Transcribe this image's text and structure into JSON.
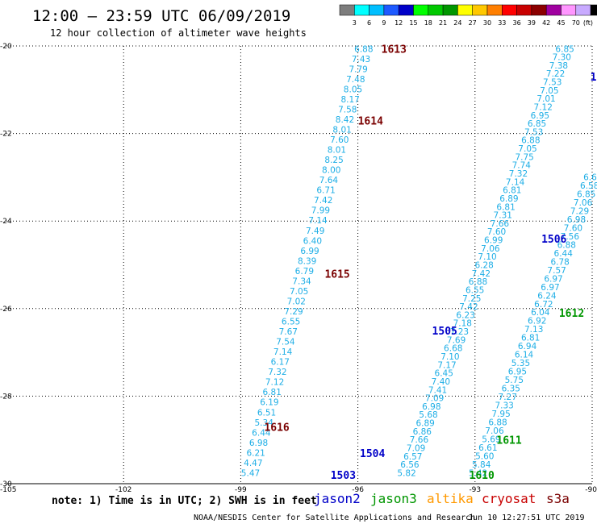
{
  "header": {
    "title": "12:00 – 23:59 UTC 06/09/2019",
    "subtitle": "12 hour collection of altimeter wave heights"
  },
  "color_legend": {
    "labels": [
      "3",
      "6",
      "9",
      "12",
      "15",
      "18",
      "21",
      "24",
      "27",
      "30",
      "33",
      "36",
      "39",
      "42",
      "45",
      "70",
      "(ft)"
    ],
    "colors": [
      "#7d7d7d",
      "#00ffff",
      "#00bfff",
      "#1e5aff",
      "#0000c8",
      "#00ff00",
      "#00c800",
      "#009600",
      "#ffff00",
      "#ffc800",
      "#ff7f00",
      "#ff0000",
      "#c80000",
      "#8b0000",
      "#a000a0",
      "#ff96ff",
      "#c8aaff",
      "#000000"
    ]
  },
  "footer": {
    "note": "note: 1) Time is in UTC; 2) SWH is in feet",
    "satellites": [
      {
        "name": "jason2",
        "color": "#0000c8"
      },
      {
        "name": "jason3",
        "color": "#009600"
      },
      {
        "name": "altika",
        "color": "#ff9900"
      },
      {
        "name": "cryosat",
        "color": "#c80000"
      },
      {
        "name": "s3a",
        "color": "#7a0000"
      }
    ],
    "credit_left": "NOAA/NESDIS Center for Satellite Applications and Research",
    "credit_right": "Jun 10 12:27:51 UTC 2019"
  },
  "chart_data": {
    "type": "scatter",
    "xlim": [
      -105,
      -90
    ],
    "ylim": [
      -30,
      -20
    ],
    "x_ticks": [
      -105,
      -102,
      -99,
      -96,
      -93,
      -90
    ],
    "x_tick_labels": [
      "-105",
      "-102",
      "-99",
      "-96",
      "-93",
      "-90"
    ],
    "y_ticks": [
      -20,
      -22,
      -24,
      -26,
      -28,
      -30
    ],
    "y_tick_labels": [
      "-20",
      "-22",
      "-24",
      "-26",
      "-28",
      "-30"
    ],
    "grid": true,
    "tracks": [
      {
        "color": "#1eaee6",
        "start": [
          -95.85,
          -20.06
        ],
        "end": [
          -98.75,
          -29.75
        ],
        "values": [
          "6.88",
          "7.43",
          "7.79",
          "7.48",
          "8.05",
          "8.17",
          "7.58",
          "8.42",
          "8.01",
          "7.60",
          "8.01",
          "8.25",
          "8.00",
          "7.64",
          "6.71",
          "7.42",
          "7.99",
          "7.14",
          "7.49",
          "6.40",
          "6.99",
          "8.39",
          "6.79",
          "7.34",
          "7.05",
          "7.02",
          "7.29",
          "6.55",
          "7.67",
          "7.54",
          "7.14",
          "6.17",
          "7.32",
          "7.12",
          "6.81",
          "6.19",
          "6.51",
          "5.34",
          "6.44",
          "6.98",
          "6.21",
          "4.47",
          "5.47"
        ]
      },
      {
        "color": "#1eaee6",
        "start": [
          -90.7,
          -20.06
        ],
        "end": [
          -94.75,
          -29.75
        ],
        "values": [
          "6.85",
          "7.30",
          "7.38",
          "7.22",
          "7.53",
          "7.05",
          "7.01",
          "7.12",
          "6.95",
          "6.85",
          "7.53",
          "6.88",
          "7.05",
          "7.75",
          "7.74",
          "7.32",
          "7.14",
          "6.81",
          "6.89",
          "6.81",
          "7.31",
          "7.66",
          "7.60",
          "6.99",
          "7.06",
          "7.10",
          "6.28",
          "7.42",
          "6.88",
          "6.55",
          "7.25",
          "7.42",
          "6.23",
          "7.18",
          "7.23",
          "7.69",
          "6.68",
          "7.10",
          "7.17",
          "6.45",
          "7.40",
          "7.41",
          "7.09",
          "6.98",
          "5.68",
          "6.89",
          "6.86",
          "7.66",
          "7.09",
          "6.57",
          "6.56",
          "5.82"
        ]
      },
      {
        "color": "#1eaee6",
        "start": [
          -89.9,
          -22.8
        ],
        "end": [
          -92.92,
          -29.75
        ],
        "values": [
          "8.4",
          "6.64",
          "6.58",
          "6.85",
          "7.06",
          "7.29",
          "6.98",
          "7.60",
          "7.56",
          "6.88",
          "6.44",
          "6.78",
          "7.57",
          "6.97",
          "6.97",
          "6.24",
          "6.72",
          "6.04",
          "6.92",
          "7.13",
          "6.81",
          "6.94",
          "6.14",
          "5.35",
          "6.95",
          "5.75",
          "6.35",
          "7.27",
          "7.33",
          "7.95",
          "6.88",
          "7.06",
          "5.69",
          "6.61",
          "5.60",
          "5.84",
          "5.42"
        ]
      }
    ],
    "cycle_labels": [
      {
        "text": "1613",
        "x": -95.4,
        "y": -20.06,
        "color": "#7a0000"
      },
      {
        "text": "1614",
        "x": -96.0,
        "y": -21.7,
        "color": "#7a0000"
      },
      {
        "text": "1615",
        "x": -96.85,
        "y": -25.2,
        "color": "#7a0000"
      },
      {
        "text": "1616",
        "x": -98.4,
        "y": -28.7,
        "color": "#7a0000"
      },
      {
        "text": "15",
        "x": -90.05,
        "y": -20.7,
        "color": "#0000c8"
      },
      {
        "text": "1506",
        "x": -91.3,
        "y": -24.4,
        "color": "#0000c8"
      },
      {
        "text": "1505",
        "x": -94.1,
        "y": -26.5,
        "color": "#0000c8"
      },
      {
        "text": "1504",
        "x": -95.95,
        "y": -29.3,
        "color": "#0000c8"
      },
      {
        "text": "1503",
        "x": -96.7,
        "y": -29.8,
        "color": "#0000c8"
      },
      {
        "text": "1612",
        "x": -90.85,
        "y": -26.1,
        "color": "#009600"
      },
      {
        "text": "1611",
        "x": -92.45,
        "y": -29.0,
        "color": "#009600"
      },
      {
        "text": "1610",
        "x": -93.15,
        "y": -29.8,
        "color": "#009600"
      }
    ]
  }
}
